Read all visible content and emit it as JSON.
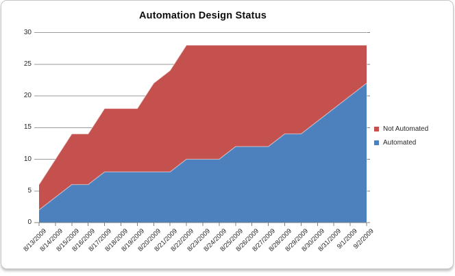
{
  "chart_data": {
    "type": "area",
    "stacked": true,
    "title": "Automation Design Status",
    "x": [
      "8/13/2009",
      "8/14/2009",
      "8/15/2009",
      "8/16/2009",
      "8/17/2009",
      "8/18/2009",
      "8/19/2009",
      "8/20/2009",
      "8/21/2009",
      "8/22/2009",
      "8/23/2009",
      "8/24/2009",
      "8/25/2009",
      "8/26/2009",
      "8/27/2009",
      "8/28/2009",
      "8/29/2009",
      "8/30/2009",
      "8/31/2009",
      "9/1/2009",
      "9/2/2009"
    ],
    "series": [
      {
        "name": "Automated",
        "color": "#4D81BE",
        "values": [
          2,
          4,
          6,
          6,
          8,
          8,
          8,
          8,
          8,
          10,
          10,
          10,
          12,
          12,
          12,
          14,
          14,
          16,
          18,
          20,
          22
        ]
      },
      {
        "name": "Not Automated",
        "color": "#C4514D",
        "values": [
          4,
          6,
          8,
          8,
          10,
          10,
          10,
          14,
          16,
          18,
          18,
          18,
          16,
          16,
          16,
          14,
          14,
          12,
          10,
          8,
          6
        ]
      }
    ],
    "ylim": [
      0,
      30
    ],
    "yticks": [
      0,
      5,
      10,
      15,
      20,
      25,
      30
    ],
    "grid": "horizontal",
    "legend_position": "right",
    "gridline_color": "#9a9a9a",
    "axis_line_color": "#808080",
    "axis_text_color": "#262626",
    "area_edge_highlight": "rgba(255,255,255,0.45)"
  }
}
